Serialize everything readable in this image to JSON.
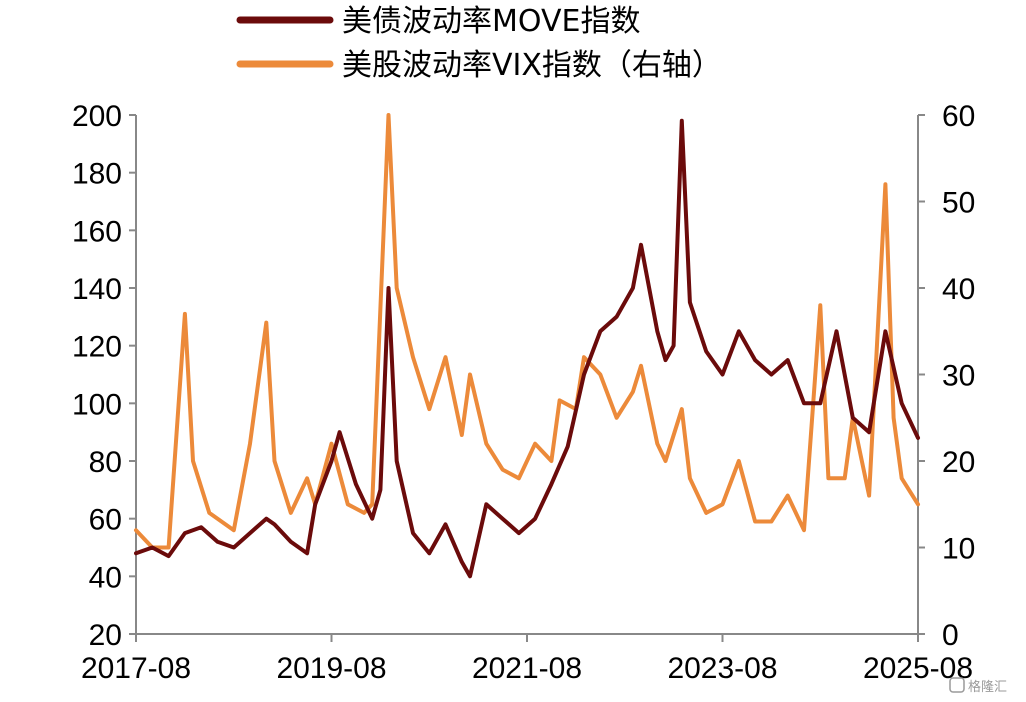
{
  "chart_data": {
    "type": "line",
    "legend_position": "top-left",
    "grid": false,
    "x_range": [
      "2017-08",
      "2025-08"
    ],
    "x_ticks": [
      "2017-08",
      "2019-08",
      "2021-08",
      "2023-08",
      "2025-08"
    ],
    "y_left": {
      "range": [
        20,
        200
      ],
      "ticks": [
        "200",
        "180",
        "160",
        "140",
        "120",
        "100",
        "80",
        "60",
        "40",
        "20"
      ]
    },
    "y_right": {
      "range": [
        0,
        60
      ],
      "ticks": [
        "60",
        "50",
        "40",
        "30",
        "20",
        "10",
        "0"
      ]
    },
    "series": [
      {
        "name": "美债波动率MOVE指数",
        "axis": "left",
        "color": "#6b0b0b",
        "points": [
          [
            "2017-08",
            48
          ],
          [
            "2017-10",
            50
          ],
          [
            "2017-12",
            47
          ],
          [
            "2018-02",
            55
          ],
          [
            "2018-04",
            57
          ],
          [
            "2018-06",
            52
          ],
          [
            "2018-08",
            50
          ],
          [
            "2018-10",
            55
          ],
          [
            "2018-12",
            60
          ],
          [
            "2019-01",
            58
          ],
          [
            "2019-03",
            52
          ],
          [
            "2019-05",
            48
          ],
          [
            "2019-06",
            65
          ],
          [
            "2019-08",
            80
          ],
          [
            "2019-09",
            90
          ],
          [
            "2019-11",
            72
          ],
          [
            "2020-01",
            60
          ],
          [
            "2020-02",
            70
          ],
          [
            "2020-03",
            140
          ],
          [
            "2020-04",
            80
          ],
          [
            "2020-06",
            55
          ],
          [
            "2020-08",
            48
          ],
          [
            "2020-10",
            58
          ],
          [
            "2020-12",
            45
          ],
          [
            "2021-01",
            40
          ],
          [
            "2021-03",
            65
          ],
          [
            "2021-05",
            60
          ],
          [
            "2021-07",
            55
          ],
          [
            "2021-09",
            60
          ],
          [
            "2021-11",
            72
          ],
          [
            "2022-01",
            85
          ],
          [
            "2022-03",
            110
          ],
          [
            "2022-05",
            125
          ],
          [
            "2022-07",
            130
          ],
          [
            "2022-09",
            140
          ],
          [
            "2022-10",
            155
          ],
          [
            "2022-12",
            125
          ],
          [
            "2023-01",
            115
          ],
          [
            "2023-02",
            120
          ],
          [
            "2023-03",
            198
          ],
          [
            "2023-04",
            135
          ],
          [
            "2023-06",
            118
          ],
          [
            "2023-08",
            110
          ],
          [
            "2023-10",
            125
          ],
          [
            "2023-12",
            115
          ],
          [
            "2024-02",
            110
          ],
          [
            "2024-04",
            115
          ],
          [
            "2024-06",
            100
          ],
          [
            "2024-08",
            100
          ],
          [
            "2024-10",
            125
          ],
          [
            "2024-12",
            95
          ],
          [
            "2025-02",
            90
          ],
          [
            "2025-04",
            125
          ],
          [
            "2025-06",
            100
          ],
          [
            "2025-08",
            88
          ]
        ]
      },
      {
        "name": "美股波动率VIX指数（右轴）",
        "axis": "right",
        "color": "#ec8a3a",
        "points": [
          [
            "2017-08",
            12
          ],
          [
            "2017-10",
            10
          ],
          [
            "2017-12",
            10
          ],
          [
            "2018-02",
            37
          ],
          [
            "2018-03",
            20
          ],
          [
            "2018-05",
            14
          ],
          [
            "2018-08",
            12
          ],
          [
            "2018-10",
            22
          ],
          [
            "2018-12",
            36
          ],
          [
            "2019-01",
            20
          ],
          [
            "2019-03",
            14
          ],
          [
            "2019-05",
            18
          ],
          [
            "2019-06",
            15
          ],
          [
            "2019-08",
            22
          ],
          [
            "2019-10",
            15
          ],
          [
            "2019-12",
            14
          ],
          [
            "2020-01",
            15
          ],
          [
            "2020-03",
            60
          ],
          [
            "2020-04",
            40
          ],
          [
            "2020-06",
            32
          ],
          [
            "2020-08",
            26
          ],
          [
            "2020-10",
            32
          ],
          [
            "2020-12",
            23
          ],
          [
            "2021-01",
            30
          ],
          [
            "2021-03",
            22
          ],
          [
            "2021-05",
            19
          ],
          [
            "2021-07",
            18
          ],
          [
            "2021-09",
            22
          ],
          [
            "2021-11",
            20
          ],
          [
            "2021-12",
            27
          ],
          [
            "2022-02",
            26
          ],
          [
            "2022-03",
            32
          ],
          [
            "2022-05",
            30
          ],
          [
            "2022-07",
            25
          ],
          [
            "2022-09",
            28
          ],
          [
            "2022-10",
            31
          ],
          [
            "2022-12",
            22
          ],
          [
            "2023-01",
            20
          ],
          [
            "2023-03",
            26
          ],
          [
            "2023-04",
            18
          ],
          [
            "2023-06",
            14
          ],
          [
            "2023-08",
            15
          ],
          [
            "2023-10",
            20
          ],
          [
            "2023-12",
            13
          ],
          [
            "2024-02",
            13
          ],
          [
            "2024-04",
            16
          ],
          [
            "2024-06",
            12
          ],
          [
            "2024-08",
            38
          ],
          [
            "2024-09",
            18
          ],
          [
            "2024-11",
            18
          ],
          [
            "2024-12",
            25
          ],
          [
            "2025-02",
            16
          ],
          [
            "2025-04",
            52
          ],
          [
            "2025-05",
            25
          ],
          [
            "2025-06",
            18
          ],
          [
            "2025-08",
            15
          ]
        ]
      }
    ]
  },
  "watermark_text": "格隆汇"
}
